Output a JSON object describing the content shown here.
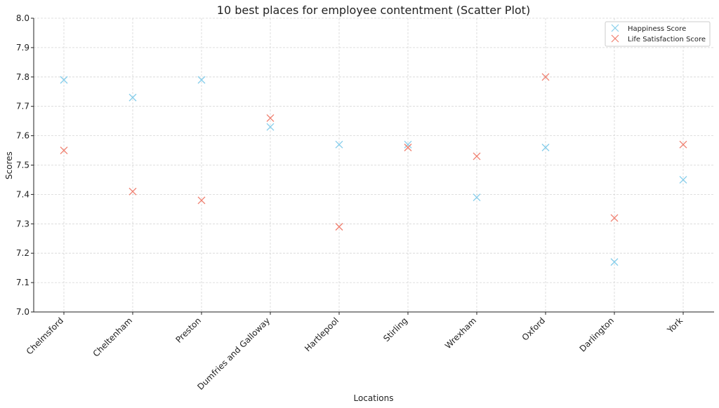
{
  "chart_data": {
    "type": "scatter",
    "title": "10 best places for employee contentment (Scatter Plot)",
    "xlabel": "Locations",
    "ylabel": "Scores",
    "categories": [
      "Chelmsford",
      "Cheltenham",
      "Preston",
      "Dumfries and Galloway",
      "Hartlepool",
      "Stirling",
      "Wrexham",
      "Oxford",
      "Darlington",
      "York"
    ],
    "ylim": [
      7.0,
      8.0
    ],
    "yticks": [
      "7.0",
      "7.1",
      "7.2",
      "7.3",
      "7.4",
      "7.5",
      "7.6",
      "7.7",
      "7.8",
      "7.9",
      "8.0"
    ],
    "grid": true,
    "legend_position": "top-right",
    "series": [
      {
        "name": "Happiness Score",
        "color": "#87ceeb",
        "marker": "x",
        "values": [
          7.79,
          7.73,
          7.79,
          7.63,
          7.57,
          7.57,
          7.39,
          7.56,
          7.17,
          7.45
        ]
      },
      {
        "name": "Life Satisfaction Score",
        "color": "#f08070",
        "marker": "x",
        "values": [
          7.55,
          7.41,
          7.38,
          7.66,
          7.29,
          7.56,
          7.53,
          7.8,
          7.32,
          7.57
        ]
      }
    ]
  }
}
